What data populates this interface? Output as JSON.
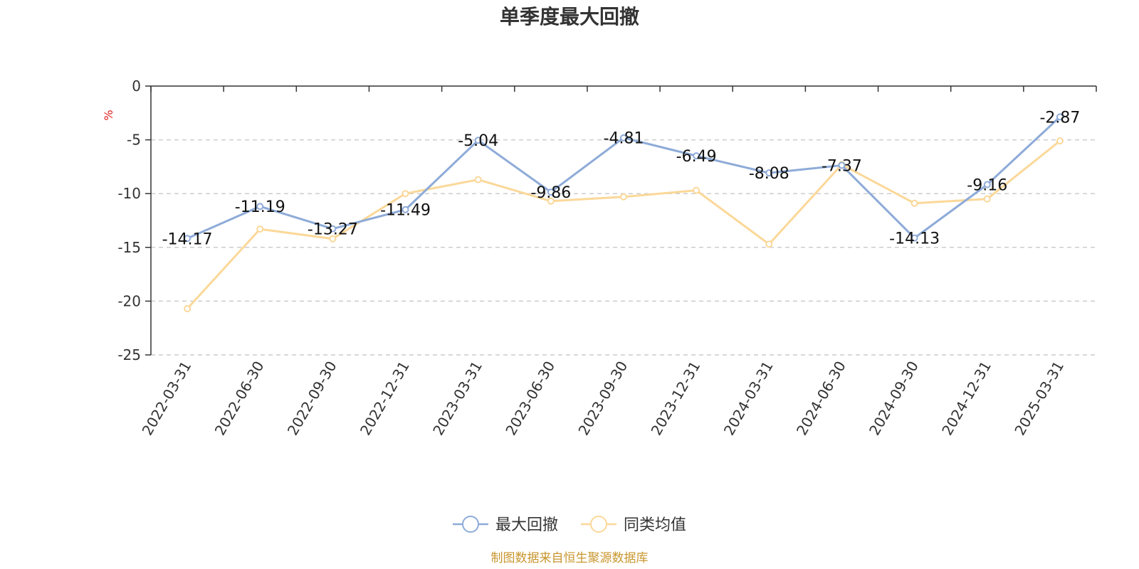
{
  "chart_data": {
    "type": "line",
    "title": "单季度最大回撤",
    "ylabel": "%",
    "ylim": [
      -25,
      0
    ],
    "yticks": [
      0,
      -5,
      -10,
      -15,
      -20,
      -25
    ],
    "grid": true,
    "legend_position": "bottom",
    "categories": [
      "2022-03-31",
      "2022-06-30",
      "2022-09-30",
      "2022-12-31",
      "2023-03-31",
      "2023-06-30",
      "2023-09-30",
      "2023-12-31",
      "2024-03-31",
      "2024-06-30",
      "2024-09-30",
      "2024-12-31",
      "2025-03-31"
    ],
    "series": [
      {
        "name": "最大回撤",
        "color": "#8eabd8",
        "values": [
          -14.17,
          -11.19,
          -13.27,
          -11.49,
          -5.04,
          -9.86,
          -4.81,
          -6.49,
          -8.08,
          -7.37,
          -14.13,
          -9.16,
          -2.87
        ],
        "show_labels": true
      },
      {
        "name": "同类均值",
        "color": "#fbd899",
        "values": [
          -20.7,
          -13.3,
          -14.2,
          -10.0,
          -8.7,
          -10.7,
          -10.3,
          -9.7,
          -14.7,
          -7.3,
          -10.9,
          -10.5,
          -5.1
        ],
        "show_labels": false
      }
    ],
    "source": "制图数据来自恒生聚源数据库"
  }
}
